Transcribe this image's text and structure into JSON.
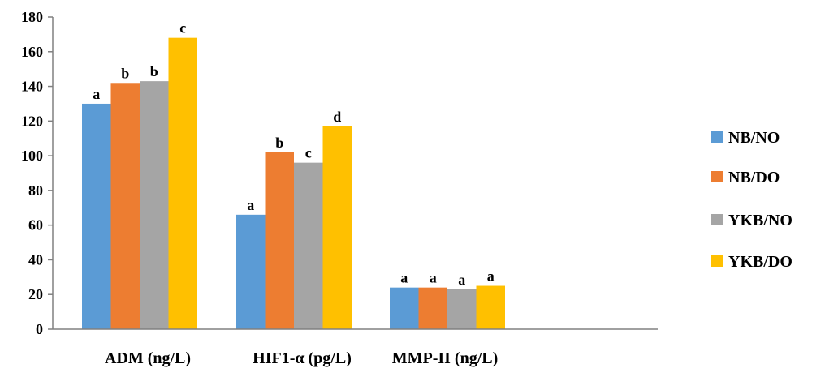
{
  "chart_data": {
    "type": "bar",
    "categories": [
      "ADM (ng/L)",
      "HIF1-α (pg/L)",
      "MMP-II (ng/L)"
    ],
    "ylim": [
      0,
      180
    ],
    "yticks": [
      0,
      20,
      40,
      60,
      80,
      100,
      120,
      140,
      160,
      180
    ],
    "grid": false,
    "legend_position": "right",
    "series": [
      {
        "name": "NB/NO",
        "color": "#5B9BD5",
        "values": [
          130,
          66,
          24
        ],
        "labels": [
          "a",
          "a",
          "a"
        ]
      },
      {
        "name": "NB/DO",
        "color": "#ED7D31",
        "values": [
          142,
          102,
          24
        ],
        "labels": [
          "b",
          "b",
          "a"
        ]
      },
      {
        "name": "YKB/NO",
        "color": "#A5A5A5",
        "values": [
          143,
          96,
          23
        ],
        "labels": [
          "b",
          "c",
          "a"
        ]
      },
      {
        "name": "YKB/DO",
        "color": "#FFC000",
        "values": [
          168,
          117,
          25
        ],
        "labels": [
          "c",
          "d",
          "a"
        ]
      }
    ]
  }
}
